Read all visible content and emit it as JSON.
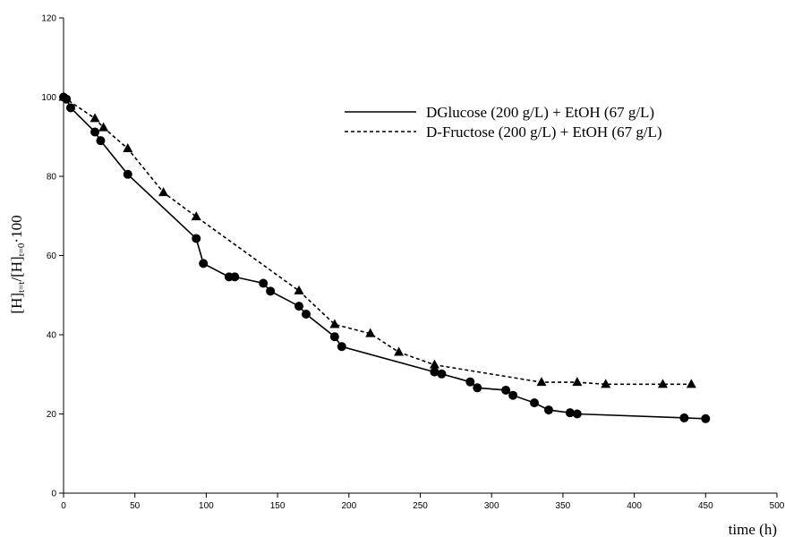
{
  "chart_data": {
    "type": "line",
    "title": "",
    "xlabel": "time (h)",
    "ylabel": "[H]t=t/[H]t=0·100",
    "ylabel_parts": {
      "main1": "[H]",
      "sub1": "t=t",
      "main2": "/[H]",
      "sub2": "t=0",
      "main3": "·100"
    },
    "xlim": [
      0,
      500
    ],
    "ylim": [
      0,
      120
    ],
    "x_ticks": [
      0,
      50,
      100,
      150,
      200,
      250,
      300,
      350,
      400,
      450,
      500
    ],
    "y_ticks": [
      0,
      20,
      40,
      60,
      80,
      100,
      120
    ],
    "grid": false,
    "legend_position": "top-right",
    "series": [
      {
        "name": "DGlucose (200 g/L) + EtOH (67 g/L)",
        "line_style": "solid",
        "marker": "circle",
        "color": "#000000",
        "x": [
          0,
          2,
          5,
          22,
          26,
          45,
          93,
          98,
          116,
          120,
          140,
          145,
          165,
          170,
          190,
          195,
          260,
          265,
          285,
          290,
          310,
          315,
          330,
          340,
          355,
          360,
          435,
          450
        ],
        "y": [
          100,
          99.5,
          97.3,
          91.2,
          89.0,
          80.5,
          64.3,
          58.0,
          54.6,
          54.6,
          53.0,
          51.0,
          47.2,
          45.2,
          39.5,
          37.0,
          30.6,
          30.1,
          28.1,
          26.6,
          26.0,
          24.7,
          22.8,
          21.0,
          20.3,
          20.0,
          19.0,
          18.8
        ]
      },
      {
        "name": "D-Fructose (200 g/L) + EtOH (67 g/L)",
        "line_style": "dashed",
        "marker": "triangle",
        "color": "#000000",
        "x": [
          0,
          22,
          28,
          45,
          70,
          93,
          165,
          190,
          215,
          235,
          260,
          335,
          360,
          380,
          420,
          440
        ],
        "y": [
          100,
          94.6,
          92.3,
          87.0,
          75.9,
          69.8,
          51.1,
          42.6,
          40.3,
          35.6,
          32.4,
          28.0,
          28.0,
          27.5,
          27.5,
          27.5
        ]
      }
    ]
  }
}
